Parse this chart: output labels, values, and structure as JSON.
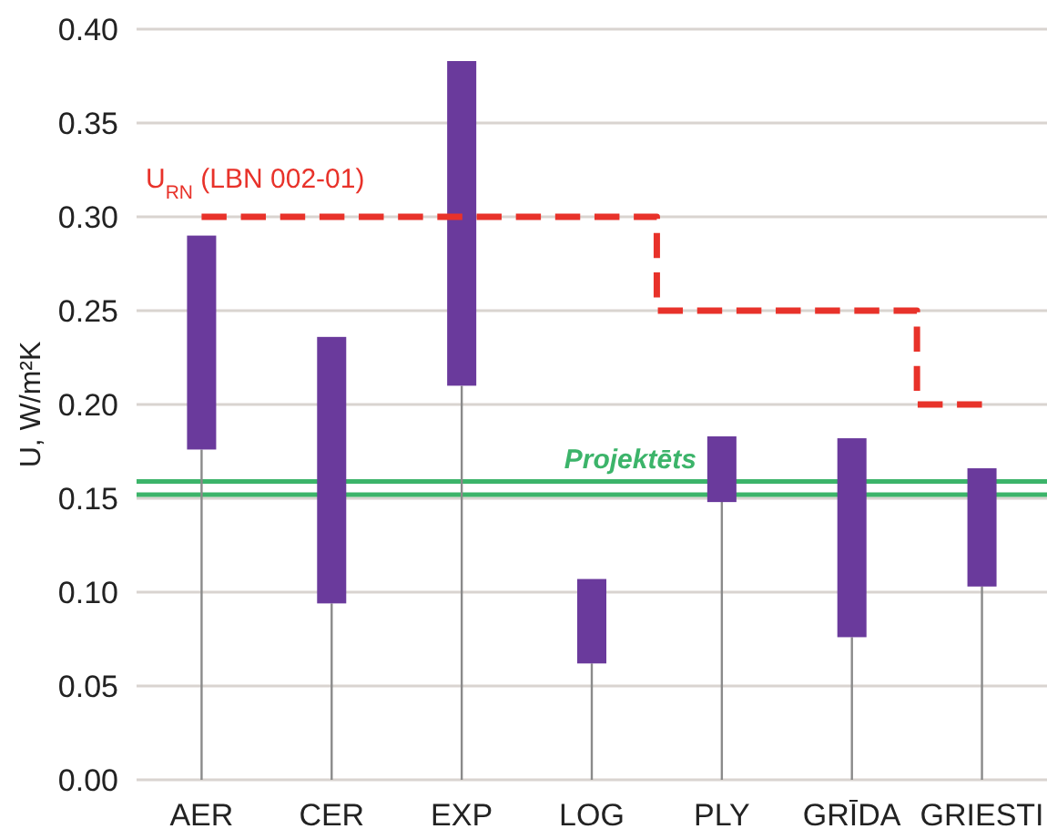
{
  "chart_data": {
    "type": "bar",
    "ylabel": "U, W/m²K",
    "categories": [
      "AER",
      "CER",
      "EXP",
      "LOG",
      "PLY",
      "GRĪDA",
      "GRIESTI"
    ],
    "series": [
      {
        "color": "#6a3a9c",
        "base": [
          0.176,
          0.094,
          0.21,
          0.062,
          0.148,
          0.076,
          0.103
        ],
        "values": [
          0.114,
          0.142,
          0.173,
          0.045,
          0.035,
          0.106,
          0.063
        ]
      },
      {
        "type": "step",
        "name": "U$_{RN}$ (LBN 002-01)",
        "color": "#e8322a",
        "line_style": "dashed",
        "values": [
          0.3,
          0.3,
          0.3,
          0.3,
          0.25,
          0.25,
          0.2
        ]
      }
    ],
    "ref_lines": [
      {
        "axis": "y",
        "value": 0.159,
        "label": "Projektēts",
        "color": "#3cb46a"
      },
      {
        "axis": "y",
        "value": 0.152,
        "color": "#3cb46a"
      }
    ],
    "ylim": [
      0,
      0.4
    ],
    "yticks": [
      {
        "value": 0,
        "label": "0.00"
      },
      {
        "value": 0.05,
        "label": "0.05"
      },
      {
        "value": 0.1,
        "label": "0.10"
      },
      {
        "value": 0.15,
        "label": "0.15"
      },
      {
        "value": 0.2,
        "label": "0.20"
      },
      {
        "value": 0.25,
        "label": "0.25"
      },
      {
        "value": 0.3,
        "label": "0.30"
      },
      {
        "value": 0.35,
        "label": "0.35"
      },
      {
        "value": 0.4,
        "label": "0.40"
      }
    ],
    "grid": "y"
  }
}
